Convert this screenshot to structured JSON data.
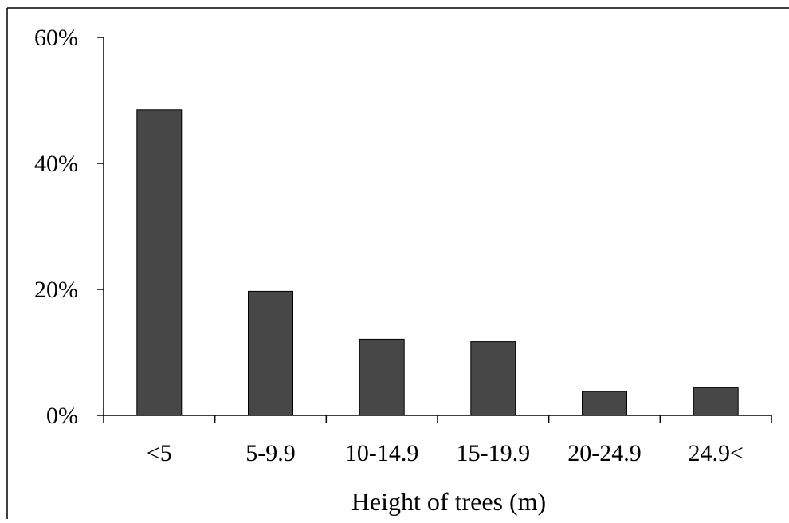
{
  "chart_data": {
    "type": "bar",
    "title": "",
    "xlabel": "Height of trees (m)",
    "ylabel": "",
    "categories": [
      "<5",
      "5-9.9",
      "10-14.9",
      "15-19.9",
      "20-24.9",
      "24.9<"
    ],
    "values": [
      48.5,
      19.7,
      12.1,
      11.7,
      3.8,
      4.4
    ],
    "unit": "%",
    "ylim": [
      0,
      60
    ],
    "yticks": [
      0,
      20,
      40,
      60
    ],
    "ytick_labels": [
      "0%",
      "20%",
      "40%",
      "60%"
    ],
    "grid": false,
    "legend": "none",
    "bar_color": "#474747",
    "bar_edge_color": "#000000"
  }
}
